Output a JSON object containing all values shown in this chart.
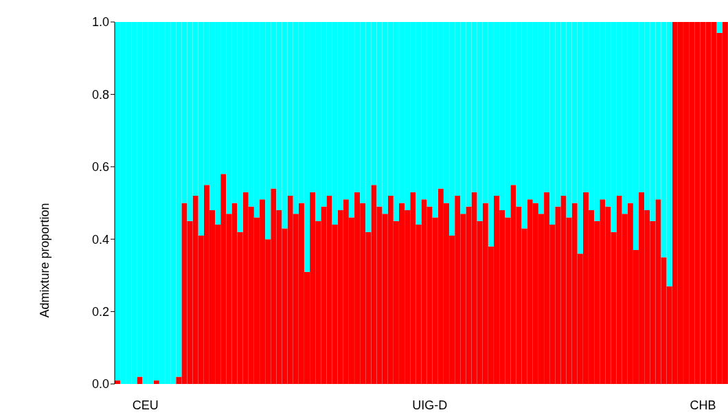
{
  "chart_data": {
    "type": "bar",
    "stacked": true,
    "ylabel": "Admixture proportion",
    "ylim": [
      0,
      1
    ],
    "yticks": [
      {
        "value": 0,
        "label": "0.0"
      },
      {
        "value": 0.2,
        "label": "0.2"
      },
      {
        "value": 0.4,
        "label": "0.4"
      },
      {
        "value": 0.6,
        "label": "0.6"
      },
      {
        "value": 0.8,
        "label": "0.8"
      },
      {
        "value": 1,
        "label": "1.0"
      }
    ],
    "categories": [
      null,
      null,
      null,
      null,
      null,
      "CEU",
      null,
      null,
      null,
      null,
      null,
      null,
      null,
      null,
      null,
      null,
      null,
      null,
      null,
      null,
      null,
      null,
      null,
      null,
      null,
      null,
      null,
      null,
      null,
      null,
      null,
      null,
      null,
      null,
      null,
      null,
      null,
      null,
      null,
      null,
      null,
      null,
      null,
      null,
      null,
      null,
      null,
      null,
      null,
      null,
      null,
      null,
      null,
      null,
      null,
      null,
      "UIG-D",
      null,
      null,
      null,
      null,
      null,
      null,
      null,
      null,
      null,
      null,
      null,
      null,
      null,
      null,
      null,
      null,
      null,
      null,
      null,
      null,
      null,
      null,
      null,
      null,
      null,
      null,
      null,
      null,
      null,
      null,
      null,
      null,
      null,
      null,
      null,
      null,
      null,
      null,
      null,
      null,
      null,
      null,
      null,
      null,
      null,
      null,
      null,
      null,
      "CHB",
      null,
      null,
      null,
      null
    ],
    "series": [
      {
        "color": "#ff0000",
        "values": [
          0.01,
          0,
          0,
          0,
          0.02,
          0,
          0,
          0.01,
          0,
          0,
          0,
          0.02,
          0.5,
          0.45,
          0.52,
          0.41,
          0.55,
          0.48,
          0.44,
          0.58,
          0.47,
          0.5,
          0.42,
          0.53,
          0.49,
          0.46,
          0.51,
          0.4,
          0.54,
          0.48,
          0.43,
          0.52,
          0.47,
          0.5,
          0.31,
          0.53,
          0.45,
          0.49,
          0.52,
          0.44,
          0.48,
          0.51,
          0.46,
          0.53,
          0.5,
          0.42,
          0.55,
          0.49,
          0.47,
          0.52,
          0.45,
          0.5,
          0.48,
          0.53,
          0.44,
          0.51,
          0.49,
          0.46,
          0.54,
          0.5,
          0.41,
          0.52,
          0.47,
          0.49,
          0.53,
          0.45,
          0.5,
          0.38,
          0.52,
          0.48,
          0.46,
          0.55,
          0.49,
          0.43,
          0.51,
          0.5,
          0.47,
          0.53,
          0.44,
          0.49,
          0.52,
          0.46,
          0.5,
          0.36,
          0.53,
          0.48,
          0.45,
          0.51,
          0.49,
          0.42,
          0.52,
          0.47,
          0.5,
          0.37,
          0.53,
          0.48,
          0.45,
          0.51,
          0.35,
          0.27,
          1,
          1,
          1,
          1,
          1,
          1,
          1,
          1,
          0.97,
          1
        ]
      },
      {
        "color": "#00ffff",
        "values": [
          0.99,
          1,
          1,
          1,
          0.98,
          1,
          1,
          0.99,
          1,
          1,
          1,
          0.98,
          0.5,
          0.55,
          0.48,
          0.59,
          0.45,
          0.52,
          0.56,
          0.42,
          0.53,
          0.5,
          0.58,
          0.47,
          0.51,
          0.54,
          0.49,
          0.6,
          0.46,
          0.52,
          0.57,
          0.48,
          0.53,
          0.5,
          0.69,
          0.47,
          0.55,
          0.51,
          0.48,
          0.56,
          0.52,
          0.49,
          0.54,
          0.47,
          0.5,
          0.58,
          0.45,
          0.51,
          0.53,
          0.48,
          0.55,
          0.5,
          0.52,
          0.47,
          0.56,
          0.49,
          0.51,
          0.54,
          0.46,
          0.5,
          0.59,
          0.48,
          0.53,
          0.51,
          0.47,
          0.55,
          0.5,
          0.62,
          0.48,
          0.52,
          0.54,
          0.45,
          0.51,
          0.57,
          0.49,
          0.5,
          0.53,
          0.47,
          0.56,
          0.51,
          0.48,
          0.54,
          0.5,
          0.64,
          0.47,
          0.52,
          0.55,
          0.49,
          0.51,
          0.58,
          0.48,
          0.53,
          0.5,
          0.63,
          0.47,
          0.52,
          0.55,
          0.49,
          0.65,
          0.73,
          0,
          0,
          0,
          0,
          0,
          0,
          0,
          0,
          0.03,
          0
        ]
      }
    ]
  }
}
